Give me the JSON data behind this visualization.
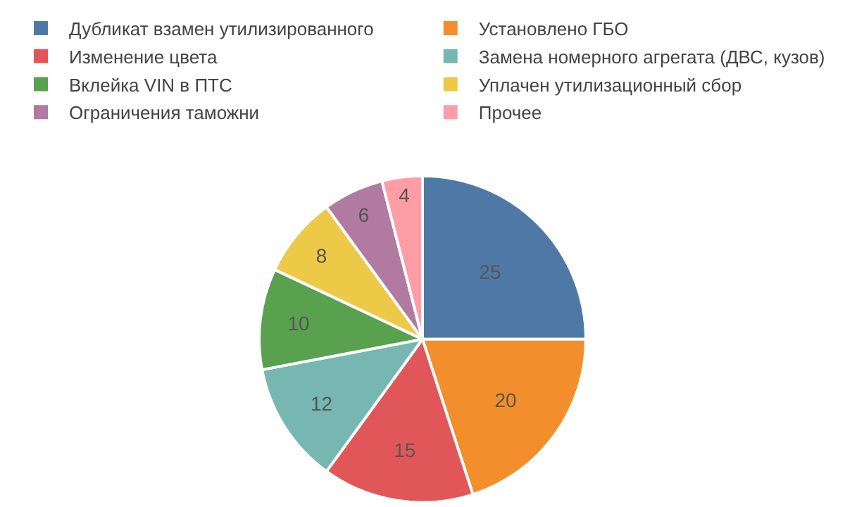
{
  "chart_data": {
    "type": "pie",
    "categories": [
      "Дубликат взамен утилизированного",
      "Установлено ГБО",
      "Изменение цвета",
      "Замена номерного агрегата (ДВС, кузов)",
      "Вклейка VIN в ПТС",
      "Уплачен утилизационный сбор",
      "Ограничения таможни",
      "Прочее"
    ],
    "values": [
      25,
      20,
      15,
      12,
      10,
      8,
      6,
      4
    ],
    "colors": [
      "#4e79a7",
      "#f28e2b",
      "#e15759",
      "#76b7b2",
      "#59a14f",
      "#edc948",
      "#b07aa1",
      "#ff9da7"
    ],
    "data_labels": true,
    "legend": "top"
  }
}
